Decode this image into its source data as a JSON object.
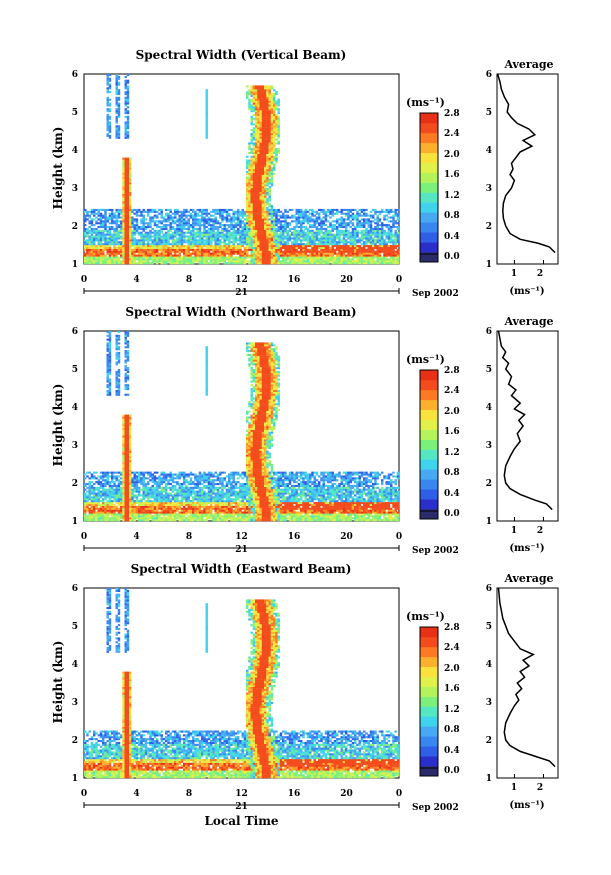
{
  "colors": {
    "scale": [
      "#2b2b6b",
      "#2a2ecb",
      "#2f5fe6",
      "#3a86f0",
      "#47a9f2",
      "#3fd3ee",
      "#55e6c2",
      "#7df07c",
      "#b4f45a",
      "#e2f04a",
      "#fae23c",
      "#fdb02e",
      "#fb7a22",
      "#f44b1c",
      "#e83017"
    ],
    "trace": "#000000",
    "white": "#ffffff"
  },
  "figure": {
    "date_label": "Sep 2002",
    "xlabel": "Local Time",
    "x_ticks": [
      "0",
      "4",
      "8",
      "12",
      "16",
      "20",
      "0"
    ],
    "date_tick": "21",
    "y_ticks": [
      "1",
      "2",
      "3",
      "4",
      "5",
      "6"
    ],
    "ylabel": "Height (km)",
    "colorbar_unit": "(ms⁻¹)",
    "colorbar_ticks": [
      "0.0",
      "0.4",
      "0.8",
      "1.2",
      "1.6",
      "2.0",
      "2.4",
      "2.8"
    ],
    "avg_title": "Average",
    "avg_xlabel": "(ms⁻¹)"
  },
  "chart_data": [
    {
      "type": "heatmap",
      "title": "Spectral Width (Vertical Beam)",
      "xlabel": "",
      "ylabel": "Height (km)",
      "xlim": [
        0,
        24
      ],
      "ylim": [
        1,
        6
      ],
      "colorbar_label": "(ms⁻¹)",
      "colorbar_range": [
        0.0,
        2.9
      ]
    },
    {
      "type": "line",
      "title": "Average",
      "xlabel": "(ms⁻¹)",
      "ylabel": "",
      "x_ticks": [
        "1",
        "2"
      ],
      "xlim": [
        0.4,
        2.5
      ],
      "ylim": [
        1,
        6
      ],
      "x": [
        2.4,
        2.2,
        1.8,
        1.2,
        0.85,
        0.7,
        0.62,
        0.6,
        0.62,
        0.7,
        0.9,
        1.0,
        0.85,
        0.95,
        0.9,
        1.05,
        1.2,
        1.6,
        1.3,
        1.7,
        1.5,
        1.1,
        0.9,
        0.75,
        0.8,
        0.65,
        0.55,
        0.5,
        0.42
      ],
      "y": [
        1.3,
        1.45,
        1.55,
        1.65,
        1.8,
        2.0,
        2.2,
        2.4,
        2.6,
        2.8,
        3.0,
        3.2,
        3.35,
        3.5,
        3.65,
        3.8,
        3.95,
        4.1,
        4.25,
        4.4,
        4.55,
        4.7,
        4.85,
        5.0,
        5.2,
        5.4,
        5.6,
        5.8,
        6.0
      ]
    },
    {
      "type": "heatmap",
      "title": "Spectral Width (Northward Beam)",
      "xlabel": "",
      "ylabel": "Height (km)",
      "xlim": [
        0,
        24
      ],
      "ylim": [
        1,
        6
      ],
      "colorbar_label": "(ms⁻¹)",
      "colorbar_range": [
        0.0,
        2.9
      ]
    },
    {
      "type": "line",
      "title": "Average",
      "xlabel": "(ms⁻¹)",
      "ylabel": "",
      "x_ticks": [
        "1",
        "2"
      ],
      "xlim": [
        0.4,
        2.5
      ],
      "ylim": [
        1,
        6
      ],
      "x": [
        2.3,
        2.1,
        1.7,
        1.2,
        0.85,
        0.7,
        0.65,
        0.7,
        0.85,
        1.0,
        1.2,
        1.1,
        1.3,
        1.15,
        1.35,
        1.0,
        1.2,
        0.9,
        1.05,
        0.8,
        0.9,
        0.7,
        0.8,
        0.6,
        0.7,
        0.55,
        0.5,
        0.45
      ],
      "y": [
        1.3,
        1.45,
        1.55,
        1.7,
        1.85,
        2.0,
        2.2,
        2.45,
        2.7,
        2.9,
        3.1,
        3.3,
        3.5,
        3.65,
        3.8,
        3.95,
        4.1,
        4.3,
        4.45,
        4.6,
        4.8,
        5.0,
        5.15,
        5.3,
        5.45,
        5.6,
        5.8,
        6.0
      ]
    },
    {
      "type": "heatmap",
      "title": "Spectral Width (Eastward Beam)",
      "xlabel": "Local Time",
      "ylabel": "Height (km)",
      "xlim": [
        0,
        24
      ],
      "ylim": [
        1,
        6
      ],
      "colorbar_label": "(ms⁻¹)",
      "colorbar_range": [
        0.0,
        2.9
      ]
    },
    {
      "type": "line",
      "title": "Average",
      "xlabel": "(ms⁻¹)",
      "ylabel": "",
      "x_ticks": [
        "1",
        "2"
      ],
      "xlim": [
        0.4,
        2.5
      ],
      "ylim": [
        1,
        6
      ],
      "x": [
        2.4,
        2.2,
        1.8,
        1.2,
        0.85,
        0.7,
        0.65,
        0.7,
        0.85,
        1.0,
        1.15,
        1.05,
        1.25,
        1.1,
        1.35,
        1.2,
        1.5,
        1.3,
        1.65,
        1.2,
        1.0,
        0.8,
        0.7,
        0.6,
        0.55,
        0.5,
        0.45
      ],
      "y": [
        1.3,
        1.45,
        1.55,
        1.7,
        1.85,
        2.0,
        2.2,
        2.45,
        2.7,
        2.9,
        3.05,
        3.2,
        3.35,
        3.5,
        3.65,
        3.8,
        3.95,
        4.1,
        4.25,
        4.4,
        4.6,
        4.8,
        5.0,
        5.2,
        5.4,
        5.6,
        6.0
      ]
    }
  ]
}
